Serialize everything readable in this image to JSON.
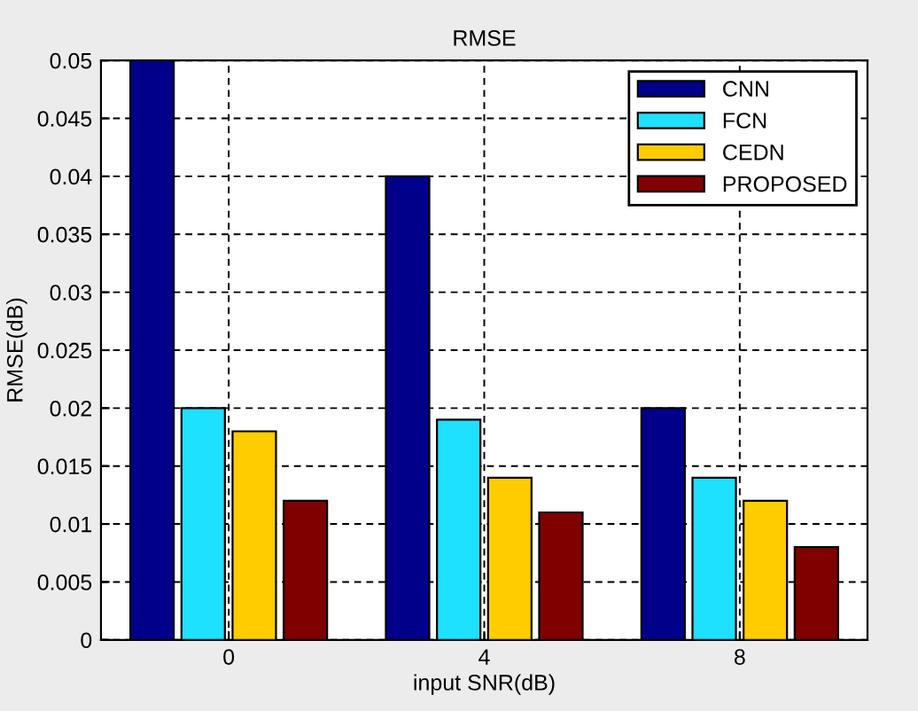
{
  "chart_data": {
    "type": "bar",
    "title": "RMSE",
    "xlabel": "input SNR(dB)",
    "ylabel": "RMSE(dB)",
    "categories": [
      "0",
      "4",
      "8"
    ],
    "series": [
      {
        "name": "CNN",
        "color": "#00008b",
        "values": [
          0.05,
          0.04,
          0.02
        ]
      },
      {
        "name": "FCN",
        "color": "#1ee0ff",
        "values": [
          0.02,
          0.019,
          0.014
        ]
      },
      {
        "name": "CEDN",
        "color": "#ffcc00",
        "values": [
          0.018,
          0.014,
          0.012
        ]
      },
      {
        "name": "PROPOSED",
        "color": "#800000",
        "values": [
          0.012,
          0.011,
          0.008
        ]
      }
    ],
    "ylim": [
      0,
      0.05
    ],
    "yticks": [
      0,
      0.005,
      0.01,
      0.015,
      0.02,
      0.025,
      0.03,
      0.035,
      0.04,
      0.045,
      0.05
    ],
    "grid": true,
    "legend": "top right"
  }
}
